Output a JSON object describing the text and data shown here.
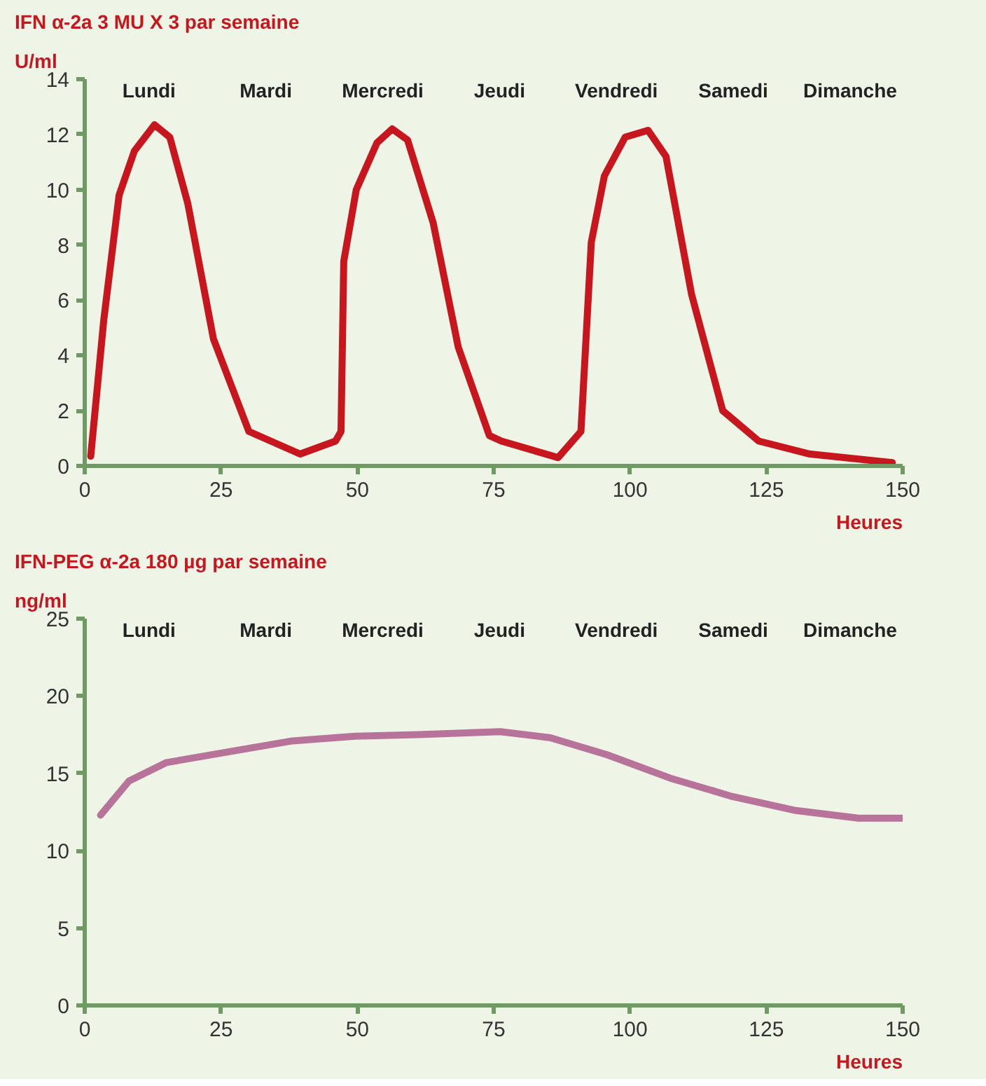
{
  "chart_data": [
    {
      "type": "line",
      "title": "IFN α-2a   3 MU X 3  par semaine",
      "ylabel": "U/ml",
      "xlabel": "Heures",
      "annotations": [
        "Lundi",
        "Mardi",
        "Mercredi",
        "Jeudi",
        "Vendredi",
        "Samedi",
        "Dimanche"
      ],
      "series": [
        {
          "color": "#c8161e",
          "x": [
            1.1,
            3.5,
            6.3,
            9.1,
            12.8,
            15.6,
            18.9,
            23.6,
            30.1,
            39.5,
            46,
            47,
            47.5,
            49.8,
            53.6,
            56.4,
            59.2,
            63.9,
            68.5,
            74.2,
            76.4,
            86.8,
            91,
            92.9,
            95.3,
            99.1,
            103.3,
            106.6,
            111.3,
            117,
            123.6,
            133,
            148.1
          ],
          "values": [
            0.35,
            5.3,
            9.8,
            11.4,
            12.35,
            11.9,
            9.5,
            4.6,
            1.25,
            0.43,
            0.9,
            1.25,
            7.4,
            10.0,
            11.7,
            12.2,
            11.8,
            8.8,
            4.3,
            1.1,
            0.9,
            0.3,
            1.25,
            8.1,
            10.5,
            11.9,
            12.15,
            11.2,
            6.2,
            2.0,
            0.9,
            0.43,
            0.12
          ]
        }
      ],
      "xlim": [
        0,
        150
      ],
      "xticks": [
        0,
        25,
        50,
        75,
        100,
        125,
        150
      ],
      "ylim": [
        0,
        14
      ],
      "yticks": [
        0,
        2,
        4,
        6,
        8,
        10,
        12,
        14
      ],
      "grid": false,
      "marker": "none",
      "line_style": "solid"
    },
    {
      "type": "line",
      "title": "IFN-PEG α-2a   180 µg par semaine",
      "ylabel": "ng/ml",
      "xlabel": "Heures",
      "annotations": [
        "Lundi",
        "Mardi",
        "Mercredi",
        "Jeudi",
        "Vendredi",
        "Samedi",
        "Dimanche"
      ],
      "series": [
        {
          "color": "#b8739b",
          "x": [
            2.9,
            8.1,
            15,
            26.5,
            38.1,
            49.6,
            61.2,
            76.2,
            85.4,
            95.8,
            107.3,
            118.8,
            130.4,
            141.9,
            150
          ],
          "values": [
            12.3,
            14.5,
            15.7,
            16.4,
            17.1,
            17.4,
            17.5,
            17.7,
            17.3,
            16.2,
            14.7,
            13.5,
            12.6,
            12.1,
            12.1
          ]
        }
      ],
      "xlim": [
        0,
        150
      ],
      "xticks": [
        0,
        25,
        50,
        75,
        100,
        125,
        150
      ],
      "ylim": [
        0,
        25
      ],
      "yticks": [
        0,
        5,
        10,
        15,
        20,
        25
      ],
      "grid": false,
      "marker": "none",
      "line_style": "solid"
    }
  ]
}
